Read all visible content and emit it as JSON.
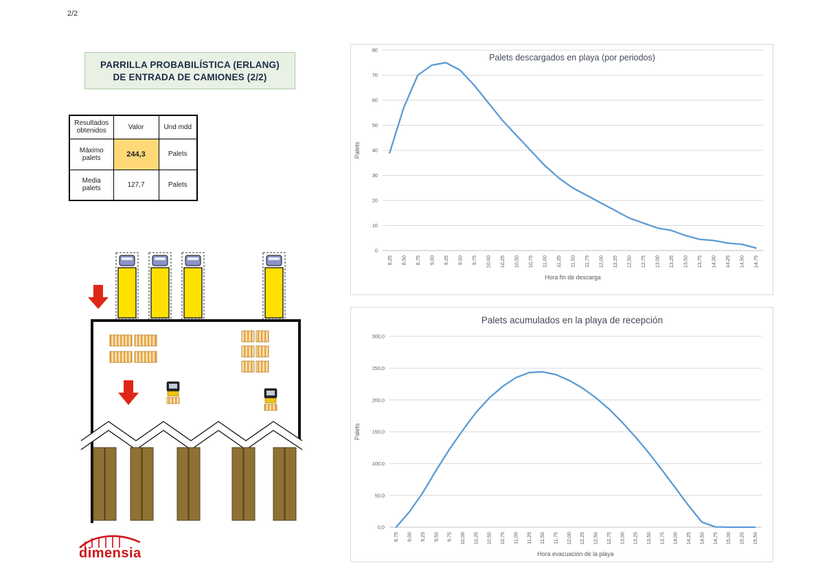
{
  "page": {
    "indicator": "2/2"
  },
  "title_box": {
    "line1": "PARRILLA PROBABILÍSTICA (ERLANG)",
    "line2": "DE ENTRADA DE CAMIONES (2/2)"
  },
  "results_table": {
    "headers": [
      "Resultados obtenidos",
      "Valor",
      "Und mdd"
    ],
    "rows": [
      {
        "label": "Máximo palets",
        "value": "244,3",
        "unit": "Palets"
      },
      {
        "label": "Media palets",
        "value": "127,7",
        "unit": "Palets"
      }
    ]
  },
  "logo": {
    "text": "dimensia"
  },
  "colors": {
    "line-blue": "#5b9bd5",
    "highlight-yellow": "#ffd978",
    "title-green-bg": "#e8f1e4",
    "title-green-border": "#aec9a6",
    "title-text": "#1d2b47",
    "arrow-red": "#e02617",
    "truck-yellow": "#ffe100",
    "cab-blue": "#8a93c9",
    "rack-brown": "#8f7134",
    "pallet-orange": "#e8a33d",
    "logo-red": "#d01317"
  },
  "chart_data": [
    {
      "type": "line",
      "title": "Palets descargados en playa (por periodos)",
      "xlabel": "Hora fin de descarga",
      "ylabel": "Palets",
      "ylim": [
        0,
        80
      ],
      "yticks": [
        "0",
        "10",
        "20",
        "30",
        "40",
        "50",
        "60",
        "70",
        "80"
      ],
      "grid": true,
      "legend": "none",
      "line_color": "#5b9bd5",
      "categories": [
        "8,25",
        "8,50",
        "8,75",
        "9,00",
        "9,25",
        "9,50",
        "9,75",
        "10,00",
        "10,25",
        "10,50",
        "10,75",
        "11,00",
        "11,25",
        "11,50",
        "11,75",
        "12,00",
        "12,25",
        "12,50",
        "12,75",
        "13,00",
        "13,25",
        "13,50",
        "13,75",
        "14,00",
        "14,25",
        "14,50",
        "14,75"
      ],
      "values": [
        39,
        57,
        70,
        74,
        75,
        72,
        66,
        59,
        52,
        46,
        40,
        34,
        29,
        25,
        22,
        19,
        16,
        13,
        11,
        9,
        8,
        6,
        4.5,
        4,
        3,
        2.5,
        1
      ]
    },
    {
      "type": "line",
      "title": "Palets acumulados en la playa de recepción",
      "xlabel": "Hora evacuación de la playa",
      "ylabel": "Palets",
      "ylim": [
        0,
        300
      ],
      "yticks": [
        "0,0",
        "50,0",
        "100,0",
        "150,0",
        "200,0",
        "250,0",
        "300,0"
      ],
      "grid": true,
      "legend": "none",
      "line_color": "#5b9bd5",
      "categories": [
        "8,75",
        "9,00",
        "9,25",
        "9,50",
        "9,75",
        "10,00",
        "10,25",
        "10,50",
        "10,75",
        "11,00",
        "11,25",
        "11,50",
        "11,75",
        "12,00",
        "12,25",
        "12,50",
        "12,75",
        "13,00",
        "13,25",
        "13,50",
        "13,75",
        "14,00",
        "14,25",
        "14,50",
        "14,75",
        "15,00",
        "15,25",
        "15,50"
      ],
      "values": [
        0,
        24,
        54,
        89,
        122,
        152,
        180,
        203,
        221,
        235,
        243,
        244.3,
        240,
        231,
        219,
        204,
        186,
        165,
        142,
        117,
        90,
        62,
        34,
        8,
        0.5,
        0,
        0,
        0
      ]
    }
  ]
}
